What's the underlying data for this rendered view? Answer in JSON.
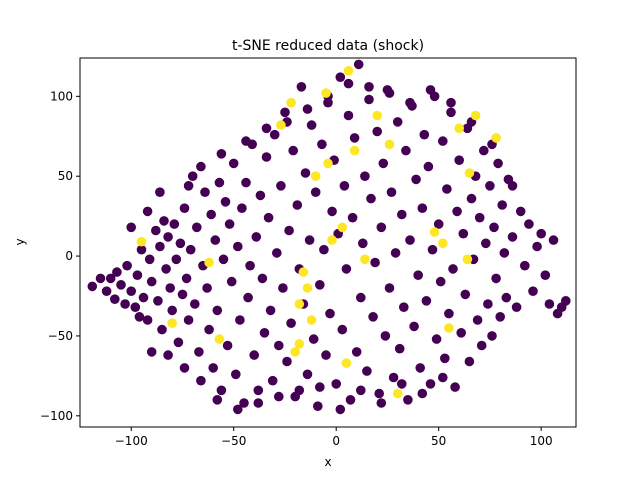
{
  "chart_data": {
    "type": "scatter",
    "title": "t-SNE reduced data (shock)",
    "xlabel": "x",
    "ylabel": "y",
    "xlim": [
      -125,
      117
    ],
    "ylim": [
      -107,
      124
    ],
    "xticks": [
      -100,
      -50,
      0,
      50,
      100
    ],
    "yticks": [
      -100,
      -50,
      0,
      50,
      100
    ],
    "grid": false,
    "legend": "none",
    "colors": {
      "class_0": "#440154",
      "class_1": "#fde725"
    },
    "series": [
      {
        "class": 0,
        "points": [
          [
            -119,
            -19
          ],
          [
            -115,
            -14
          ],
          [
            -112,
            -22
          ],
          [
            -110,
            -14
          ],
          [
            -108,
            -27
          ],
          [
            -107,
            -10
          ],
          [
            -105,
            -18
          ],
          [
            -103,
            -30
          ],
          [
            -102,
            -6
          ],
          [
            -100,
            -22
          ],
          [
            -98,
            -32
          ],
          [
            -97,
            -12
          ],
          [
            -95,
            4
          ],
          [
            -94,
            -26
          ],
          [
            -92,
            -40
          ],
          [
            -91,
            -2
          ],
          [
            -90,
            -16
          ],
          [
            -88,
            16
          ],
          [
            -87,
            -28
          ],
          [
            -86,
            6
          ],
          [
            -85,
            -46
          ],
          [
            -84,
            22
          ],
          [
            -83,
            -8
          ],
          [
            -82,
            12
          ],
          [
            -81,
            -20
          ],
          [
            -80,
            -34
          ],
          [
            -79,
            20
          ],
          [
            -78,
            -2
          ],
          [
            -77,
            -54
          ],
          [
            -76,
            8
          ],
          [
            -75,
            -24
          ],
          [
            -74,
            30
          ],
          [
            -73,
            -14
          ],
          [
            -72,
            -40
          ],
          [
            -71,
            4
          ],
          [
            -70,
            50
          ],
          [
            -69,
            -30
          ],
          [
            -68,
            18
          ],
          [
            -67,
            -60
          ],
          [
            -66,
            56
          ],
          [
            -65,
            -6
          ],
          [
            -64,
            40
          ],
          [
            -63,
            -20
          ],
          [
            -62,
            -46
          ],
          [
            -61,
            26
          ],
          [
            -60,
            -70
          ],
          [
            -59,
            10
          ],
          [
            -58,
            -34
          ],
          [
            -57,
            46
          ],
          [
            -56,
            -84
          ],
          [
            -55,
            -2
          ],
          [
            -54,
            34
          ],
          [
            -53,
            -56
          ],
          [
            -52,
            20
          ],
          [
            -51,
            -16
          ],
          [
            -50,
            58
          ],
          [
            -49,
            -74
          ],
          [
            -48,
            6
          ],
          [
            -47,
            -40
          ],
          [
            -46,
            30
          ],
          [
            -45,
            -92
          ],
          [
            -44,
            46
          ],
          [
            -43,
            -26
          ],
          [
            -42,
            -6
          ],
          [
            -41,
            70
          ],
          [
            -40,
            -62
          ],
          [
            -39,
            12
          ],
          [
            -38,
            -84
          ],
          [
            -37,
            38
          ],
          [
            -36,
            -14
          ],
          [
            -35,
            -48
          ],
          [
            -34,
            62
          ],
          [
            -33,
            24
          ],
          [
            -32,
            -34
          ],
          [
            -31,
            -78
          ],
          [
            -30,
            76
          ],
          [
            -29,
            2
          ],
          [
            -28,
            -56
          ],
          [
            -27,
            44
          ],
          [
            -26,
            -20
          ],
          [
            -25,
            90
          ],
          [
            -24,
            -66
          ],
          [
            -23,
            16
          ],
          [
            -22,
            -42
          ],
          [
            -21,
            66
          ],
          [
            -20,
            -88
          ],
          [
            -19,
            32
          ],
          [
            -18,
            -8
          ],
          [
            -17,
            106
          ],
          [
            -16,
            -30
          ],
          [
            -15,
            52
          ],
          [
            -14,
            -74
          ],
          [
            -13,
            10
          ],
          [
            -12,
            82
          ],
          [
            -11,
            -52
          ],
          [
            -10,
            40
          ],
          [
            -9,
            -94
          ],
          [
            -8,
            -18
          ],
          [
            -7,
            70
          ],
          [
            -6,
            4
          ],
          [
            -5,
            -62
          ],
          [
            -4,
            96
          ],
          [
            -3,
            -36
          ],
          [
            -2,
            28
          ],
          [
            -1,
            60
          ],
          [
            0,
            -80
          ],
          [
            1,
            14
          ],
          [
            2,
            112
          ],
          [
            3,
            -46
          ],
          [
            4,
            44
          ],
          [
            5,
            -8
          ],
          [
            6,
            88
          ],
          [
            7,
            -90
          ],
          [
            8,
            24
          ],
          [
            9,
            74
          ],
          [
            10,
            -60
          ],
          [
            11,
            120
          ],
          [
            12,
            -26
          ],
          [
            13,
            8
          ],
          [
            14,
            50
          ],
          [
            15,
            -72
          ],
          [
            16,
            98
          ],
          [
            17,
            36
          ],
          [
            18,
            -38
          ],
          [
            19,
            -4
          ],
          [
            20,
            78
          ],
          [
            21,
            -86
          ],
          [
            22,
            18
          ],
          [
            23,
            58
          ],
          [
            24,
            -50
          ],
          [
            25,
            104
          ],
          [
            26,
            -20
          ],
          [
            27,
            40
          ],
          [
            28,
            -76
          ],
          [
            29,
            2
          ],
          [
            30,
            84
          ],
          [
            31,
            -58
          ],
          [
            32,
            26
          ],
          [
            33,
            -32
          ],
          [
            34,
            66
          ],
          [
            35,
            -90
          ],
          [
            36,
            10
          ],
          [
            37,
            94
          ],
          [
            38,
            -44
          ],
          [
            39,
            48
          ],
          [
            40,
            -12
          ],
          [
            41,
            -70
          ],
          [
            42,
            30
          ],
          [
            43,
            76
          ],
          [
            44,
            -28
          ],
          [
            45,
            56
          ],
          [
            46,
            -80
          ],
          [
            47,
            4
          ],
          [
            48,
            100
          ],
          [
            49,
            -52
          ],
          [
            50,
            20
          ],
          [
            51,
            -16
          ],
          [
            52,
            72
          ],
          [
            53,
            -64
          ],
          [
            54,
            42
          ],
          [
            55,
            -36
          ],
          [
            56,
            90
          ],
          [
            57,
            -8
          ],
          [
            58,
            -82
          ],
          [
            59,
            28
          ],
          [
            60,
            60
          ],
          [
            61,
            -48
          ],
          [
            62,
            14
          ],
          [
            63,
            -24
          ],
          [
            64,
            80
          ],
          [
            65,
            -66
          ],
          [
            66,
            36
          ],
          [
            67,
            -2
          ],
          [
            68,
            50
          ],
          [
            69,
            -40
          ],
          [
            70,
            24
          ],
          [
            71,
            -56
          ],
          [
            72,
            66
          ],
          [
            73,
            8
          ],
          [
            74,
            -30
          ],
          [
            75,
            44
          ],
          [
            76,
            -50
          ],
          [
            77,
            18
          ],
          [
            78,
            -14
          ],
          [
            79,
            58
          ],
          [
            80,
            -38
          ],
          [
            81,
            32
          ],
          [
            82,
            2
          ],
          [
            83,
            -26
          ],
          [
            84,
            48
          ],
          [
            86,
            12
          ],
          [
            88,
            -32
          ],
          [
            90,
            28
          ],
          [
            92,
            -6
          ],
          [
            94,
            20
          ],
          [
            96,
            -22
          ],
          [
            98,
            6
          ],
          [
            100,
            14
          ],
          [
            102,
            -12
          ],
          [
            104,
            -30
          ],
          [
            106,
            10
          ],
          [
            108,
            -36
          ],
          [
            110,
            -32
          ],
          [
            112,
            -28
          ],
          [
            -96,
            -38
          ],
          [
            -90,
            -60
          ],
          [
            -82,
            -62
          ],
          [
            -74,
            -70
          ],
          [
            -66,
            -78
          ],
          [
            -58,
            -90
          ],
          [
            -48,
            -96
          ],
          [
            -38,
            -92
          ],
          [
            -28,
            -88
          ],
          [
            -18,
            -84
          ],
          [
            -8,
            -82
          ],
          [
            2,
            -96
          ],
          [
            12,
            -84
          ],
          [
            22,
            -92
          ],
          [
            32,
            -80
          ],
          [
            42,
            -86
          ],
          [
            52,
            -76
          ],
          [
            -86,
            40
          ],
          [
            -72,
            44
          ],
          [
            -56,
            64
          ],
          [
            -44,
            72
          ],
          [
            -34,
            80
          ],
          [
            -24,
            84
          ],
          [
            -14,
            92
          ],
          [
            -4,
            100
          ],
          [
            6,
            108
          ],
          [
            16,
            106
          ],
          [
            26,
            102
          ],
          [
            36,
            96
          ],
          [
            46,
            104
          ],
          [
            56,
            96
          ],
          [
            66,
            84
          ],
          [
            76,
            70
          ],
          [
            86,
            44
          ],
          [
            -100,
            18
          ],
          [
            -92,
            28
          ]
        ]
      },
      {
        "class": 1,
        "points": [
          [
            -95,
            9
          ],
          [
            -80,
            -42
          ],
          [
            -62,
            -4
          ],
          [
            -57,
            -52
          ],
          [
            -27,
            82
          ],
          [
            -22,
            96
          ],
          [
            -20,
            -60
          ],
          [
            -18,
            -55
          ],
          [
            -18,
            -30
          ],
          [
            -16,
            -10
          ],
          [
            -14,
            -20
          ],
          [
            -12,
            -40
          ],
          [
            -10,
            50
          ],
          [
            -5,
            102
          ],
          [
            -4,
            58
          ],
          [
            -2,
            10
          ],
          [
            3,
            18
          ],
          [
            5,
            -67
          ],
          [
            6,
            116
          ],
          [
            9,
            66
          ],
          [
            14,
            -2
          ],
          [
            20,
            88
          ],
          [
            26,
            70
          ],
          [
            30,
            -86
          ],
          [
            48,
            15
          ],
          [
            52,
            8
          ],
          [
            55,
            -45
          ],
          [
            60,
            80
          ],
          [
            64,
            -2
          ],
          [
            65,
            52
          ],
          [
            78,
            74
          ],
          [
            68,
            88
          ]
        ]
      }
    ]
  }
}
